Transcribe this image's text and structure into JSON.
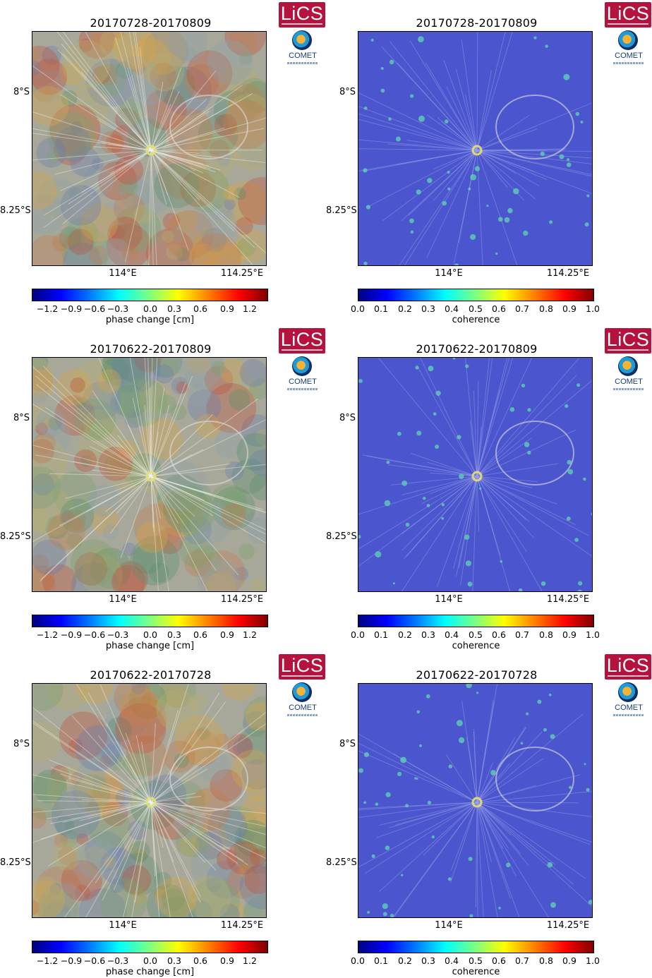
{
  "logos": {
    "lics": "LiCS",
    "comet": "COMET"
  },
  "axes": {
    "lat": [
      "8°S",
      "8.25°S"
    ],
    "lon": [
      "114°E",
      "114.25°E"
    ]
  },
  "phase_colorbar": {
    "label": "phase change [cm]",
    "ticks": [
      "−1.2",
      "−0.9",
      "−0.6",
      "−0.3",
      "0.0",
      "0.3",
      "0.6",
      "0.9",
      "1.2"
    ]
  },
  "coherence_colorbar": {
    "label": "coherence",
    "ticks": [
      "0.0",
      "0.1",
      "0.2",
      "0.3",
      "0.4",
      "0.5",
      "0.6",
      "0.7",
      "0.8",
      "0.9",
      "1.0"
    ]
  },
  "panels": [
    {
      "title": "20170728-20170809",
      "kind": "phase"
    },
    {
      "title": "20170728-20170809",
      "kind": "coherence"
    },
    {
      "title": "20170622-20170809",
      "kind": "phase"
    },
    {
      "title": "20170622-20170809",
      "kind": "coherence"
    },
    {
      "title": "20170622-20170728",
      "kind": "phase"
    },
    {
      "title": "20170622-20170728",
      "kind": "coherence"
    }
  ],
  "colors": {
    "lics_red": "#b5123e",
    "comet_blue": "#1a3d7a"
  }
}
